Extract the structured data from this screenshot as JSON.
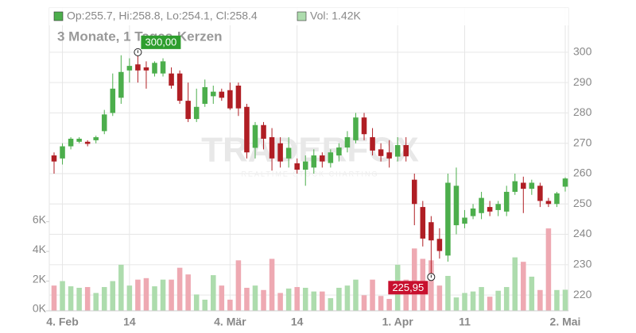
{
  "chart_data": {
    "type": "candlestick",
    "legend": [
      "Op:255.7, Hi:258.8, Lo:254.1, Cl:258.4",
      "Vol: 1.42K"
    ],
    "subtitle": "3 Monate, 1 Tages-Kerzen",
    "watermark": "TRADERFOX",
    "watermark_sub": "REALTIME STOCK CHARTING",
    "categories": [
      null,
      "4. Feb",
      null,
      null,
      null,
      null,
      null,
      null,
      null,
      "14",
      null,
      null,
      null,
      null,
      null,
      null,
      null,
      null,
      null,
      null,
      null,
      "4. Mär",
      null,
      null,
      null,
      null,
      null,
      null,
      null,
      "14",
      null,
      null,
      null,
      null,
      null,
      null,
      null,
      null,
      null,
      null,
      null,
      "1. Apr",
      null,
      null,
      null,
      null,
      null,
      null,
      null,
      "11",
      null,
      null,
      null,
      null,
      null,
      null,
      null,
      null,
      null,
      null,
      null,
      "2. Mai"
    ],
    "open": [
      266,
      265,
      269,
      270.5,
      270.5,
      271,
      274,
      280,
      285,
      294,
      296,
      295,
      293,
      293,
      293,
      293,
      284,
      278,
      283,
      285.5,
      287,
      287.5,
      289,
      282,
      268.5,
      276,
      272,
      270,
      265,
      263.4,
      261.3,
      262,
      266,
      263.5,
      266,
      268.6,
      271,
      278.5,
      272,
      268,
      267,
      265.6,
      269.4,
      258,
      249,
      244,
      238.5,
      233,
      243,
      243.5,
      246,
      247,
      249,
      248,
      247.5,
      254,
      257,
      255,
      256,
      251,
      250,
      255.7
    ],
    "high": [
      267,
      270,
      272,
      272,
      271,
      272.5,
      281,
      293,
      299,
      298,
      300,
      297,
      297,
      298,
      295,
      294,
      290,
      288,
      291,
      289,
      288,
      290,
      290,
      283,
      277,
      277,
      275,
      272,
      272,
      265,
      266,
      268,
      267,
      268,
      270,
      274,
      280,
      280,
      275,
      270,
      271,
      272,
      272,
      260,
      251,
      246,
      242,
      260,
      262,
      248,
      250,
      254,
      251,
      251,
      256,
      260,
      259,
      258,
      257,
      252,
      254,
      258.8
    ],
    "low": [
      260,
      263,
      268,
      270,
      269,
      270,
      273,
      279,
      283,
      290,
      290,
      288,
      292,
      292,
      288,
      283,
      277,
      277,
      282,
      283,
      284,
      281,
      279,
      265,
      265,
      268,
      261,
      262,
      262,
      260,
      256,
      260,
      262,
      262,
      264,
      267,
      270,
      271,
      266,
      264,
      262,
      264,
      264,
      243,
      236,
      225.95,
      232,
      231,
      240,
      242,
      245,
      245,
      246,
      246,
      246,
      253,
      247,
      253,
      249,
      249,
      249,
      254.1
    ],
    "close": [
      264,
      269,
      271.5,
      271.5,
      269.8,
      272,
      279.5,
      288,
      293.5,
      295.5,
      294,
      294,
      296.5,
      297,
      289,
      284,
      278,
      282,
      288.5,
      287,
      285,
      281.5,
      281.5,
      267,
      276,
      271.5,
      265,
      264,
      268.5,
      261.3,
      264,
      266,
      264,
      267,
      268.6,
      272,
      278.5,
      273,
      267.6,
      265.8,
      265,
      269.4,
      265.7,
      250,
      238.6,
      238,
      234.5,
      257,
      256,
      245.5,
      248.5,
      252,
      247.5,
      250,
      254,
      257.5,
      255,
      257,
      251,
      250,
      253.5,
      258.4
    ],
    "volume": [
      1700,
      2000,
      1650,
      1550,
      1600,
      1200,
      1600,
      2000,
      3100,
      1700,
      2100,
      2200,
      1650,
      2100,
      2100,
      2900,
      2450,
      1100,
      750,
      2400,
      1700,
      750,
      3400,
      1550,
      1700,
      1400,
      3500,
      1200,
      1500,
      1600,
      1550,
      1300,
      1300,
      850,
      1550,
      1700,
      2100,
      1050,
      2100,
      1000,
      800,
      3100,
      2100,
      4200,
      3500,
      3400,
      1700,
      2350,
      900,
      1200,
      1300,
      1600,
      950,
      1350,
      1600,
      3600,
      3300,
      2300,
      1400,
      5550,
      1400,
      1420
    ],
    "up_color": "#4cae4c",
    "down_color": "#b01e24",
    "up_volume_color": "#addcad",
    "down_volume_color": "#eea9b2",
    "ylim": [
      214.8,
      314.6
    ],
    "yticks": [
      220,
      230,
      240,
      250,
      260,
      270,
      280,
      290,
      300
    ],
    "y2lim": [
      0,
      20400
    ],
    "y2ticks": [
      {
        "value": 0,
        "label": "0K"
      },
      {
        "value": 2000,
        "label": "2K"
      },
      {
        "value": 4000,
        "label": "4K"
      },
      {
        "value": 6000,
        "label": "6K"
      }
    ],
    "annotations": [
      {
        "text": "300,00",
        "value": 300,
        "color": "#2e9e2e"
      },
      {
        "text": "225,95",
        "value": 225.95,
        "color": "#c8102e"
      }
    ],
    "grid": true
  }
}
